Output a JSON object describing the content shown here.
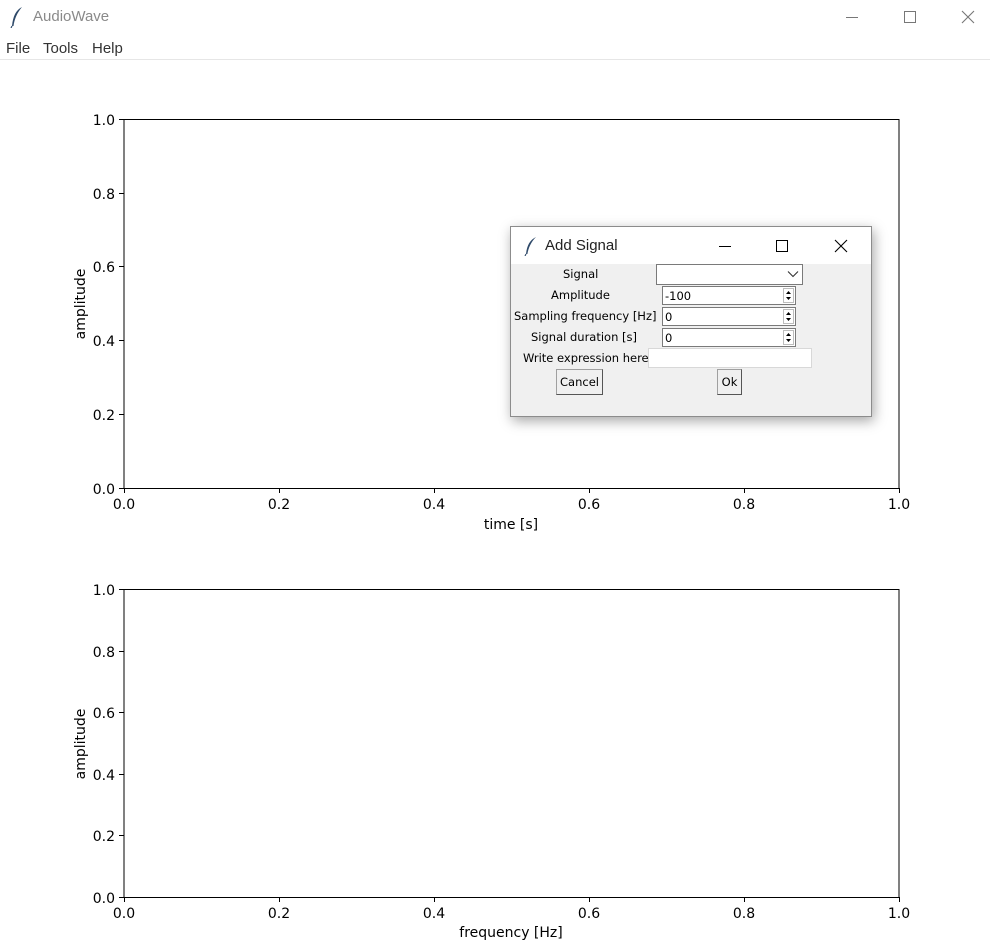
{
  "window": {
    "title": "AudioWave"
  },
  "menu": {
    "items": [
      "File",
      "Tools",
      "Help"
    ]
  },
  "plots": {
    "time": {
      "xlabel": "time [s]",
      "ylabel": "amplitude",
      "xticks": [
        "0.0",
        "0.2",
        "0.4",
        "0.6",
        "0.8",
        "1.0"
      ],
      "yticks": [
        "0.0",
        "0.2",
        "0.4",
        "0.6",
        "0.8",
        "1.0"
      ]
    },
    "frequency": {
      "xlabel": "frequency [Hz]",
      "ylabel": "amplitude",
      "xticks": [
        "0.0",
        "0.2",
        "0.4",
        "0.6",
        "0.8",
        "1.0"
      ],
      "yticks": [
        "0.0",
        "0.2",
        "0.4",
        "0.6",
        "0.8",
        "1.0"
      ]
    }
  },
  "dialog": {
    "title": "Add Signal",
    "fields": {
      "signal_label": "Signal",
      "signal_value": "",
      "amplitude_label": "Amplitude",
      "amplitude_value": "-100",
      "sampling_label": "Sampling frequency [Hz]",
      "sampling_value": "0",
      "duration_label": "Signal duration [s]",
      "duration_value": "0",
      "expression_label": "Write expression here",
      "expression_value": ""
    },
    "buttons": {
      "cancel": "Cancel",
      "ok": "Ok"
    }
  },
  "icons": {
    "app": "feather-icon",
    "minimize": "minimize-icon",
    "maximize": "maximize-icon",
    "close": "close-icon",
    "dropdown": "chevron-down-icon",
    "spinner": "spinner-arrows-icon"
  },
  "colors": {
    "feather": "#2f4a6a",
    "dialog_bg": "#f0f0f0",
    "window_title": "#8a8a8a"
  }
}
